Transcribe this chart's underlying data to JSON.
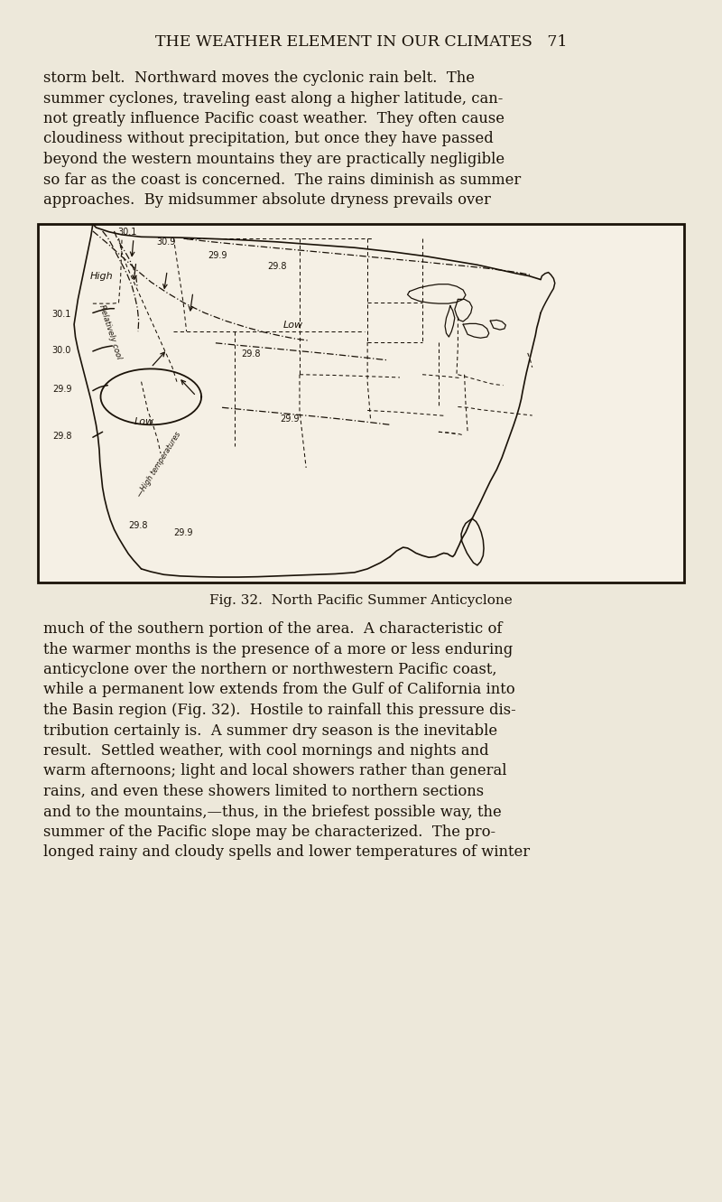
{
  "background_color": "#ede8da",
  "page_width": 8.0,
  "page_height": 13.31,
  "dpi": 100,
  "header_text": "THE WEATHER ELEMENT IN OUR CLIMATES   71",
  "header_fontsize": 12.5,
  "body_fontsize": 11.8,
  "body_color": "#1a1208",
  "map_bg": "#f5f0e5",
  "para1_lines": [
    "storm belt.  Northward moves the cyclonic rain belt.  The",
    "summer cyclones, traveling east along a higher latitude, can-",
    "not greatly influence Pacific coast weather.  They often cause",
    "cloudiness without precipitation, but once they have passed",
    "beyond the western mountains they are practically negligible",
    "so far as the coast is concerned.  The rains diminish as summer",
    "approaches.  By midsummer absolute dryness prevails over"
  ],
  "para2_lines": [
    "much of the southern portion of the area.  A characteristic of",
    "the warmer months is the presence of a more or less enduring",
    "anticyclone over the northern or northwestern Pacific coast,",
    "while a permanent low extends from the Gulf of California into",
    "the Basin region (Fig. 32).  Hostile to rainfall this pressure dis-",
    "tribution certainly is.  A summer dry season is the inevitable",
    "result.  Settled weather, with cool mornings and nights and",
    "warm afternoons; light and local showers rather than general",
    "rains, and even these showers limited to northern sections",
    "and to the mountains,—thus, in the briefest possible way, the",
    "summer of the Pacific slope may be characterized.  The pro-",
    "longed rainy and cloudy spells and lower temperatures of winter"
  ],
  "fig_caption": "Fig. 32.  North Pacific Summer Anticyclone"
}
